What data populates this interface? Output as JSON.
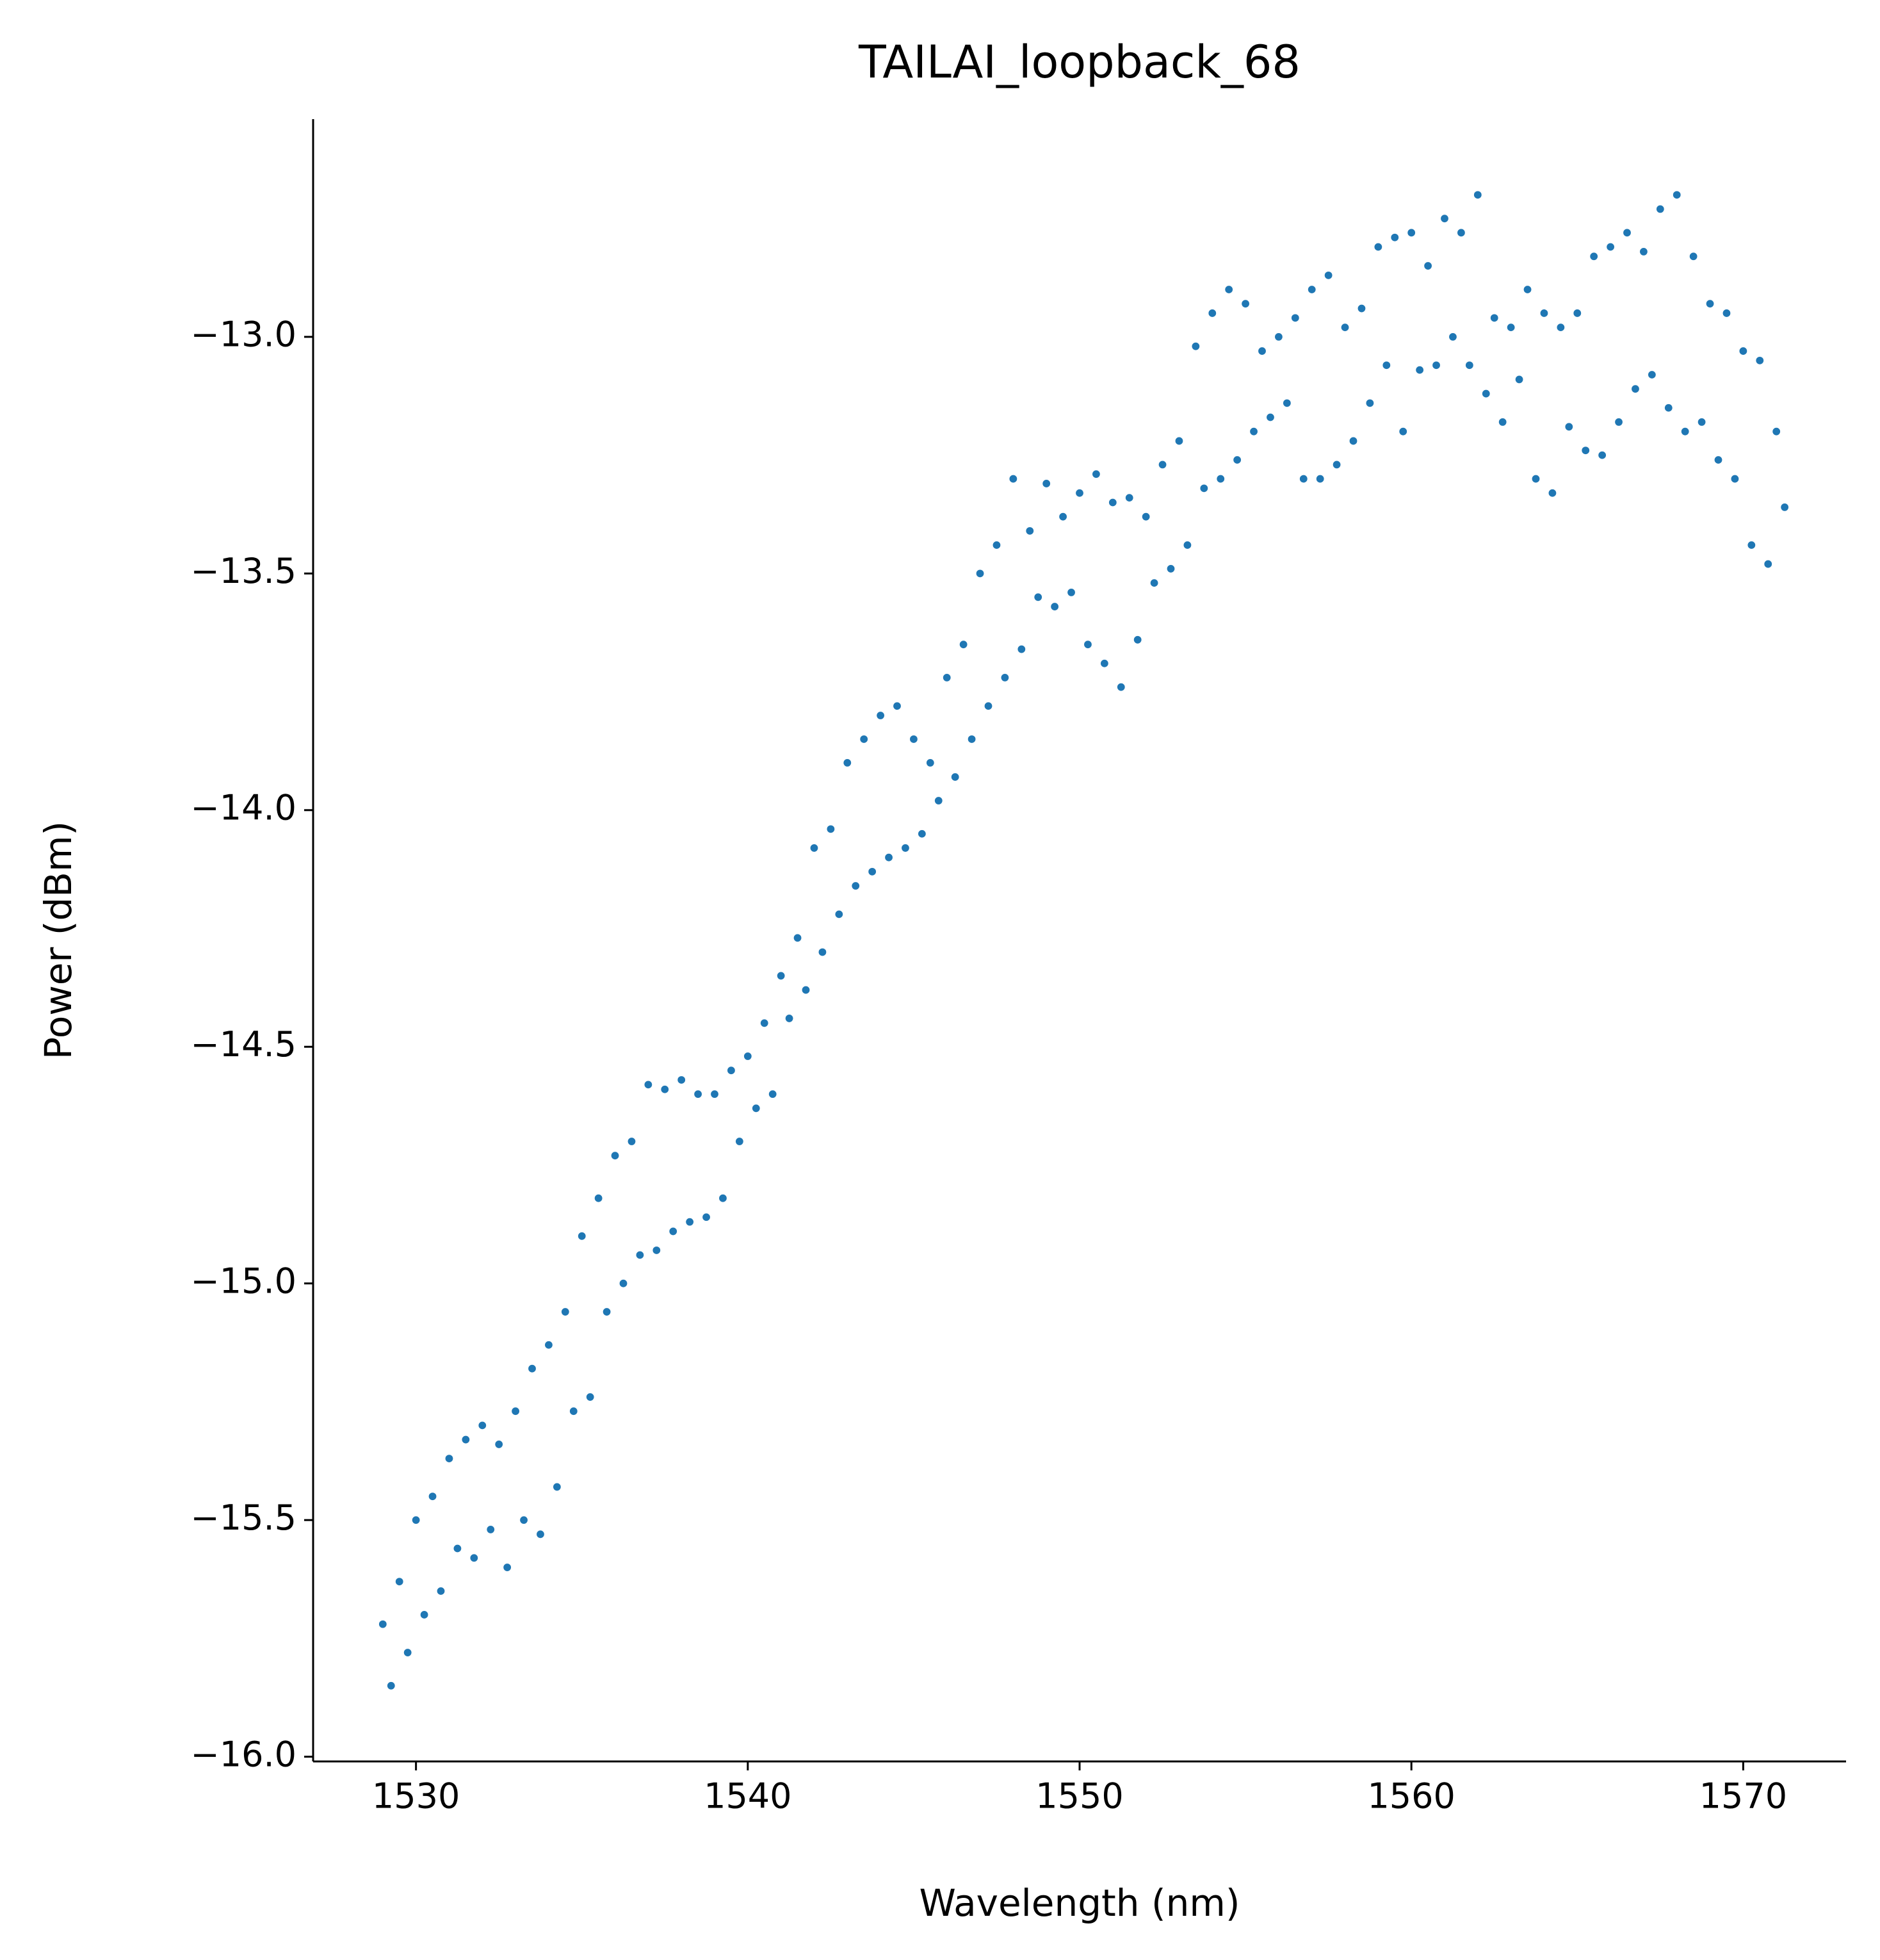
{
  "chart_data": {
    "type": "scatter",
    "title": "TAILAI_loopback_68",
    "x_label": "Wavelength (nm)",
    "y_label": "Power (dBm)",
    "color": "#1f77b4",
    "xlim": [
      1526.9,
      1573.1
    ],
    "ylim": [
      -16.01,
      -12.54
    ],
    "xticks": [
      1530,
      1540,
      1550,
      1560,
      1570
    ],
    "yticks": [
      {
        "value": -16,
        "label": "−16.0"
      },
      {
        "value": -15.5,
        "label": "−15.5"
      },
      {
        "value": -15,
        "label": "−15.0"
      },
      {
        "value": -14.5,
        "label": "−14.5"
      },
      {
        "value": -14,
        "label": "−14.0"
      },
      {
        "value": -13.5,
        "label": "−13.5"
      },
      {
        "value": -13,
        "label": "−13.0"
      }
    ],
    "x": [
      1529.0,
      1529.25,
      1529.5,
      1529.75,
      1530.0,
      1530.25,
      1530.5,
      1530.75,
      1531.0,
      1531.25,
      1531.5,
      1531.75,
      1532.0,
      1532.25,
      1532.5,
      1532.75,
      1533.0,
      1533.25,
      1533.5,
      1533.75,
      1534.0,
      1534.25,
      1534.5,
      1534.75,
      1535.0,
      1535.25,
      1535.5,
      1535.75,
      1536.0,
      1536.25,
      1536.5,
      1536.75,
      1537.0,
      1537.25,
      1537.5,
      1537.75,
      1538.0,
      1538.25,
      1538.5,
      1538.75,
      1539.0,
      1539.25,
      1539.5,
      1539.75,
      1540.0,
      1540.25,
      1540.5,
      1540.75,
      1541.0,
      1541.25,
      1541.5,
      1541.75,
      1542.0,
      1542.25,
      1542.5,
      1542.75,
      1543.0,
      1543.25,
      1543.5,
      1543.75,
      1544.0,
      1544.25,
      1544.5,
      1544.75,
      1545.0,
      1545.25,
      1545.5,
      1545.75,
      1546.0,
      1546.25,
      1546.5,
      1546.75,
      1547.0,
      1547.25,
      1547.5,
      1547.75,
      1548.0,
      1548.25,
      1548.5,
      1548.75,
      1549.0,
      1549.25,
      1549.5,
      1549.75,
      1550.0,
      1550.25,
      1550.5,
      1550.75,
      1551.0,
      1551.25,
      1551.5,
      1551.75,
      1552.0,
      1552.25,
      1552.5,
      1552.75,
      1553.0,
      1553.25,
      1553.5,
      1553.75,
      1554.0,
      1554.25,
      1554.5,
      1554.75,
      1555.0,
      1555.25,
      1555.5,
      1555.75,
      1556.0,
      1556.25,
      1556.5,
      1556.75,
      1557.0,
      1557.25,
      1557.5,
      1557.75,
      1558.0,
      1558.25,
      1558.5,
      1558.75,
      1559.0,
      1559.25,
      1559.5,
      1559.75,
      1560.0,
      1560.25,
      1560.5,
      1560.75,
      1561.0,
      1561.25,
      1561.5,
      1561.75,
      1562.0,
      1562.25,
      1562.5,
      1562.75,
      1563.0,
      1563.25,
      1563.5,
      1563.75,
      1564.0,
      1564.25,
      1564.5,
      1564.75,
      1565.0,
      1565.25,
      1565.5,
      1565.75,
      1566.0,
      1566.25,
      1566.5,
      1566.75,
      1567.0,
      1567.25,
      1567.5,
      1567.75,
      1568.0,
      1568.25,
      1568.5,
      1568.75,
      1569.0,
      1569.25,
      1569.5,
      1569.75,
      1570.0,
      1570.25,
      1570.5,
      1570.75,
      1571.0,
      1571.25
    ],
    "values": [
      -15.72,
      -15.85,
      -15.63,
      -15.78,
      -15.5,
      -15.7,
      -15.45,
      -15.65,
      -15.37,
      -15.56,
      -15.33,
      -15.58,
      -15.3,
      -15.52,
      -15.34,
      -15.6,
      -15.27,
      -15.5,
      -15.18,
      -15.53,
      -15.13,
      -15.43,
      -15.06,
      -15.27,
      -14.9,
      -15.24,
      -14.82,
      -15.06,
      -14.73,
      -15.0,
      -14.7,
      -14.94,
      -14.58,
      -14.93,
      -14.59,
      -14.89,
      -14.57,
      -14.87,
      -14.6,
      -14.86,
      -14.6,
      -14.82,
      -14.55,
      -14.7,
      -14.52,
      -14.63,
      -14.45,
      -14.6,
      -14.35,
      -14.44,
      -14.27,
      -14.38,
      -14.08,
      -14.3,
      -14.04,
      -14.22,
      -13.9,
      -14.16,
      -13.85,
      -14.13,
      -13.8,
      -14.1,
      -13.78,
      -14.08,
      -13.85,
      -14.05,
      -13.9,
      -13.98,
      -13.72,
      -13.93,
      -13.65,
      -13.85,
      -13.5,
      -13.78,
      -13.44,
      -13.72,
      -13.3,
      -13.66,
      -13.41,
      -13.55,
      -13.31,
      -13.57,
      -13.38,
      -13.54,
      -13.33,
      -13.65,
      -13.29,
      -13.69,
      -13.35,
      -13.74,
      -13.34,
      -13.64,
      -13.38,
      -13.52,
      -13.27,
      -13.49,
      -13.22,
      -13.44,
      -13.02,
      -13.32,
      -12.95,
      -13.3,
      -12.9,
      -13.26,
      -12.93,
      -13.2,
      -13.03,
      -13.17,
      -13.0,
      -13.14,
      -12.96,
      -13.3,
      -12.9,
      -13.3,
      -12.87,
      -13.27,
      -12.98,
      -13.22,
      -12.94,
      -13.14,
      -12.81,
      -13.06,
      -12.79,
      -13.2,
      -12.78,
      -13.07,
      -12.85,
      -13.06,
      -12.75,
      -13.0,
      -12.78,
      -13.06,
      -12.7,
      -13.12,
      -12.96,
      -13.18,
      -12.98,
      -13.09,
      -12.9,
      -13.3,
      -12.95,
      -13.33,
      -12.98,
      -13.19,
      -12.95,
      -13.24,
      -12.83,
      -13.25,
      -12.81,
      -13.18,
      -12.78,
      -13.11,
      -12.82,
      -13.08,
      -12.73,
      -13.15,
      -12.7,
      -13.2,
      -12.83,
      -13.18,
      -12.93,
      -13.26,
      -12.95,
      -13.3,
      -13.03,
      -13.44,
      -13.05,
      -13.48,
      -13.2,
      -13.36
    ]
  }
}
